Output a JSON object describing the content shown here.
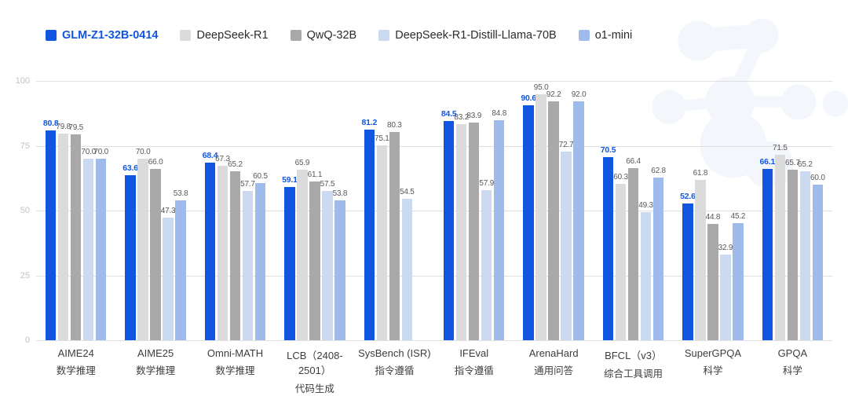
{
  "chart_data": {
    "type": "bar",
    "title": "",
    "xlabel": "",
    "ylabel": "",
    "ylim": [
      0,
      100
    ],
    "y_ticks": [
      0,
      25,
      50,
      75,
      100
    ],
    "grid": true,
    "legend_position": "top-left",
    "value_label_format": "one-decimal",
    "categories": [
      {
        "label": "AIME24",
        "sublabel": "数学推理"
      },
      {
        "label": "AIME25",
        "sublabel": "数学推理"
      },
      {
        "label": "Omni-MATH",
        "sublabel": "数学推理"
      },
      {
        "label": "LCB（2408-2501）",
        "sublabel": "代码生成"
      },
      {
        "label": "SysBench (ISR)",
        "sublabel": "指令遵循"
      },
      {
        "label": "IFEval",
        "sublabel": "指令遵循"
      },
      {
        "label": "ArenaHard",
        "sublabel": "通用问答"
      },
      {
        "label": "BFCL（v3）",
        "sublabel": "综合工具调用"
      },
      {
        "label": "SuperGPQA",
        "sublabel": "科学"
      },
      {
        "label": "GPQA",
        "sublabel": "科学"
      }
    ],
    "series": [
      {
        "name": "GLM-Z1-32B-0414",
        "color": "#1156E0",
        "emphasis": true,
        "values": [
          80.8,
          63.6,
          68.4,
          59.1,
          81.2,
          84.5,
          90.6,
          70.5,
          52.6,
          66.1
        ]
      },
      {
        "name": "DeepSeek-R1",
        "color": "#DBDBDB",
        "emphasis": false,
        "values": [
          79.8,
          70.0,
          67.3,
          65.9,
          75.1,
          83.2,
          95.0,
          60.3,
          61.8,
          71.5
        ]
      },
      {
        "name": "QwQ-32B",
        "color": "#A9A9A9",
        "emphasis": false,
        "values": [
          79.5,
          66.0,
          65.2,
          61.1,
          80.3,
          83.9,
          92.2,
          66.4,
          44.8,
          65.7
        ]
      },
      {
        "name": "DeepSeek-R1-Distill-Llama-70B",
        "color": "#CBD9F1",
        "emphasis": false,
        "values": [
          70.0,
          47.3,
          57.7,
          57.5,
          54.5,
          57.9,
          72.7,
          49.3,
          32.9,
          65.2
        ]
      },
      {
        "name": "o1-mini",
        "color": "#9FBBEC",
        "emphasis": false,
        "values": [
          70.0,
          53.8,
          60.5,
          53.8,
          null,
          84.8,
          92.0,
          62.8,
          45.2,
          60.0
        ]
      }
    ]
  },
  "colors": {
    "accent_blue": "#1156E0",
    "value_label_gray": "#58585a",
    "axis_tick_gray": "#c2c2c2",
    "gridline_gray": "#dfdfdf",
    "category_text": "#3d3d3d",
    "watermark": "#f3f6fb"
  }
}
